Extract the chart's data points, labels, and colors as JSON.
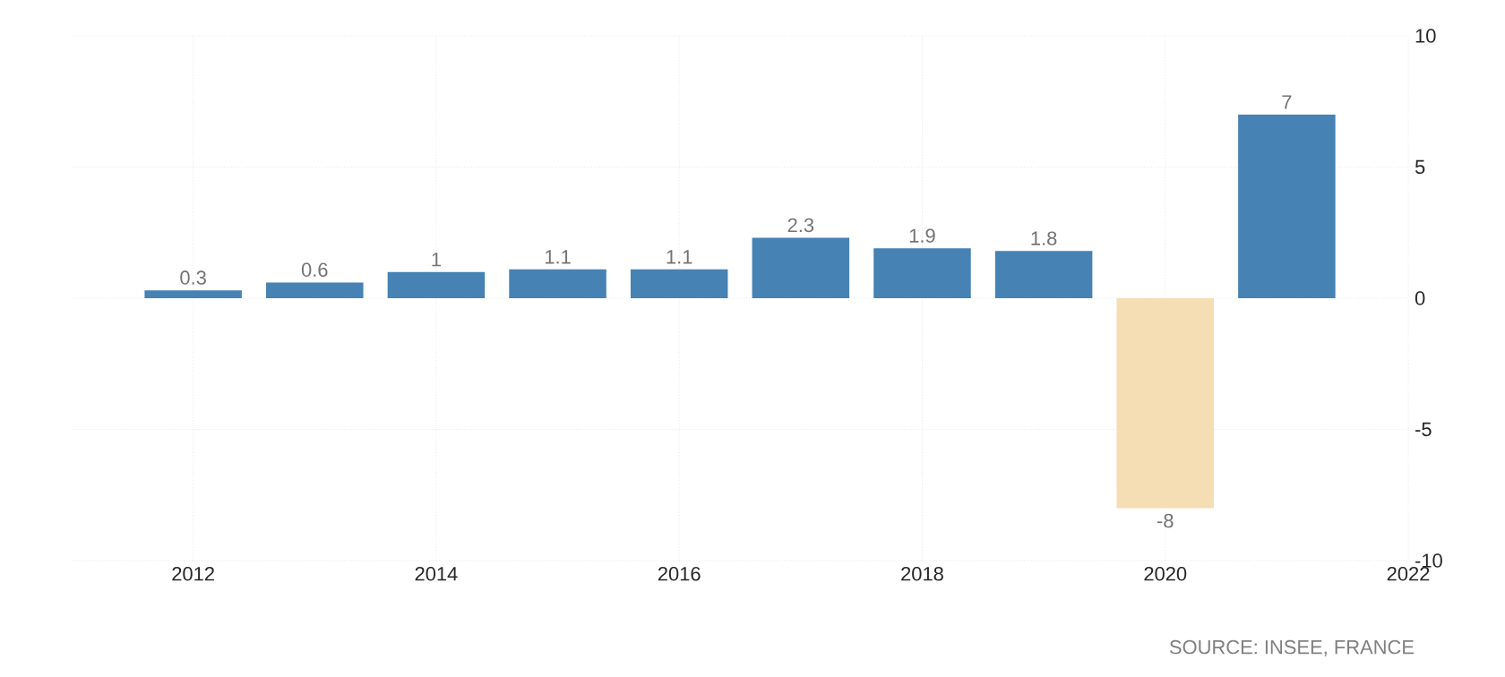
{
  "chart_data": {
    "type": "bar",
    "x": [
      2012,
      2013,
      2014,
      2015,
      2016,
      2017,
      2018,
      2019,
      2020,
      2021
    ],
    "values": [
      0.3,
      0.6,
      1,
      1.1,
      1.1,
      2.3,
      1.9,
      1.8,
      -8,
      7
    ],
    "value_labels": [
      "0.3",
      "0.6",
      "1",
      "1.1",
      "1.1",
      "2.3",
      "1.9",
      "1.8",
      "-8",
      "7"
    ],
    "colors": [
      "#4682b4",
      "#4682b4",
      "#4682b4",
      "#4682b4",
      "#4682b4",
      "#4682b4",
      "#4682b4",
      "#4682b4",
      "#f5deb3",
      "#4682b4"
    ],
    "xlim": [
      2011,
      2022
    ],
    "xticks": [
      2012,
      2014,
      2016,
      2018,
      2020,
      2022
    ],
    "ylim": [
      -10,
      10
    ],
    "yticks": [
      -10,
      -5,
      0,
      5,
      10
    ],
    "grid": true,
    "annotations": [
      "SOURCE: INSEE, FRANCE"
    ]
  }
}
